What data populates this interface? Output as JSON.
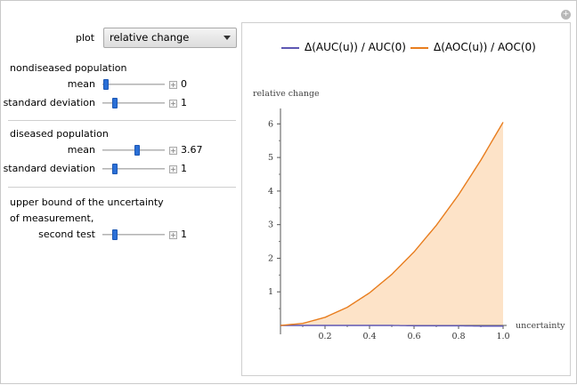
{
  "plot_control": {
    "label": "plot",
    "selected": "relative change"
  },
  "nondiseased": {
    "heading": "nondiseased population",
    "mean": {
      "label": "mean",
      "value": "0",
      "fraction": 0.02
    },
    "sd": {
      "label": "standard deviation",
      "value": "1",
      "fraction": 0.17
    }
  },
  "diseased": {
    "heading": "diseased population",
    "mean": {
      "label": "mean",
      "value": "3.67",
      "fraction": 0.57
    },
    "sd": {
      "label": "standard deviation",
      "value": "1",
      "fraction": 0.17
    }
  },
  "uncertainty": {
    "heading_line1": "upper bound of the uncertainty",
    "heading_line2": "of measurement,",
    "second_test": {
      "label": "second test",
      "value": "1",
      "fraction": 0.17
    }
  },
  "colors": {
    "auc": "#5e57b3",
    "aoc": "#e87d1e",
    "aoc_fill": "#fde3c8",
    "thumb": "#2a6fd6"
  },
  "chart_data": {
    "type": "area",
    "legend_placement": "top",
    "ylabel": "relative change",
    "xlabel": "uncertainty",
    "xlim": [
      0,
      1.0
    ],
    "ylim": [
      0,
      6.3
    ],
    "x_ticks": [
      "0.2",
      "0.4",
      "0.6",
      "0.8",
      "1.0"
    ],
    "y_ticks": [
      "1",
      "2",
      "3",
      "4",
      "5",
      "6"
    ],
    "x": [
      0,
      0.1,
      0.2,
      0.3,
      0.4,
      0.5,
      0.6,
      0.7,
      0.8,
      0.9,
      1.0
    ],
    "series": [
      {
        "name": "Δ(AUC(u)) / AUC(0)",
        "values": [
          0,
          0,
          0,
          0,
          0,
          0,
          -0.01,
          -0.01,
          -0.01,
          -0.02,
          -0.02
        ]
      },
      {
        "name": "Δ(AOC(u)) / AOC(0)",
        "values": [
          0,
          0.06,
          0.24,
          0.54,
          0.97,
          1.52,
          2.19,
          2.98,
          3.89,
          4.92,
          6.05
        ],
        "filled": true
      }
    ]
  }
}
